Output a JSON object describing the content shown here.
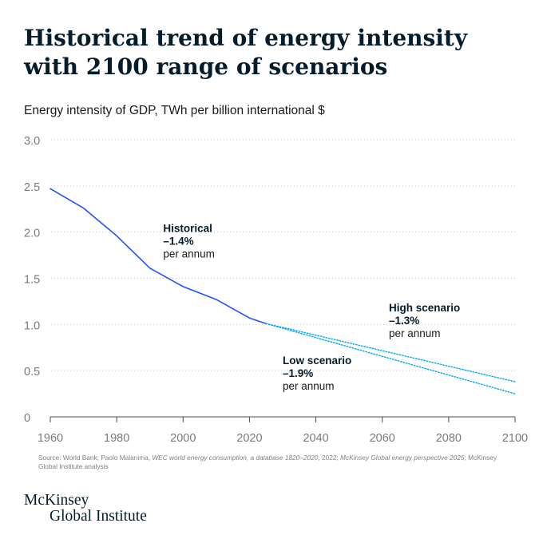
{
  "title": {
    "line1": "Historical trend of energy intensity",
    "line2": "with 2100 range of scenarios"
  },
  "subtitle": "Energy intensity of GDP, TWh per billion international $",
  "chart_data": {
    "type": "line",
    "xlim": [
      1960,
      2100
    ],
    "ylim": [
      0,
      3.0
    ],
    "x_ticks": [
      "1960",
      "1980",
      "2000",
      "2020",
      "2040",
      "2060",
      "2080",
      "2100"
    ],
    "y_ticks": [
      "3.0",
      "2.5",
      "2.0",
      "1.5",
      "1.0",
      "0.5",
      "0"
    ],
    "grid": "horizontal dotted",
    "series": [
      {
        "style": "solid",
        "color": "#2251ff",
        "x": [
          1960,
          1970,
          1980,
          1990,
          2000,
          2010,
          2020,
          2025
        ],
        "y": [
          2.47,
          2.26,
          1.96,
          1.61,
          1.41,
          1.27,
          1.07,
          1.01
        ]
      },
      {
        "style": "dotted",
        "color": "#00a9f4",
        "x": [
          2025,
          2100
        ],
        "y": [
          1.01,
          0.38
        ]
      },
      {
        "style": "dotted",
        "color": "#00a9f4",
        "x": [
          2025,
          2100
        ],
        "y": [
          1.01,
          0.25
        ]
      }
    ],
    "annotations": [
      {
        "name": "historical",
        "label": "Historical",
        "rate": "–1.4%",
        "unit": "per annum"
      },
      {
        "name": "high-scenario",
        "label": "High scenario",
        "rate": "–1.3%",
        "unit": "per annum"
      },
      {
        "name": "low-scenario",
        "label": "Low scenario",
        "rate": "–1.9%",
        "unit": "per annum"
      }
    ]
  },
  "source": {
    "prefix": "Source: World Bank; Paolo Malanima, ",
    "title1": "WEC world energy consumption, a database 1820–2020",
    "middle": ", 2022; ",
    "title2": "McKinsey Global energy perspective 2025",
    "suffix": "; McKinsey Global Institute analysis"
  },
  "logo": {
    "line1": "McKinsey",
    "line2": "Global Institute"
  }
}
